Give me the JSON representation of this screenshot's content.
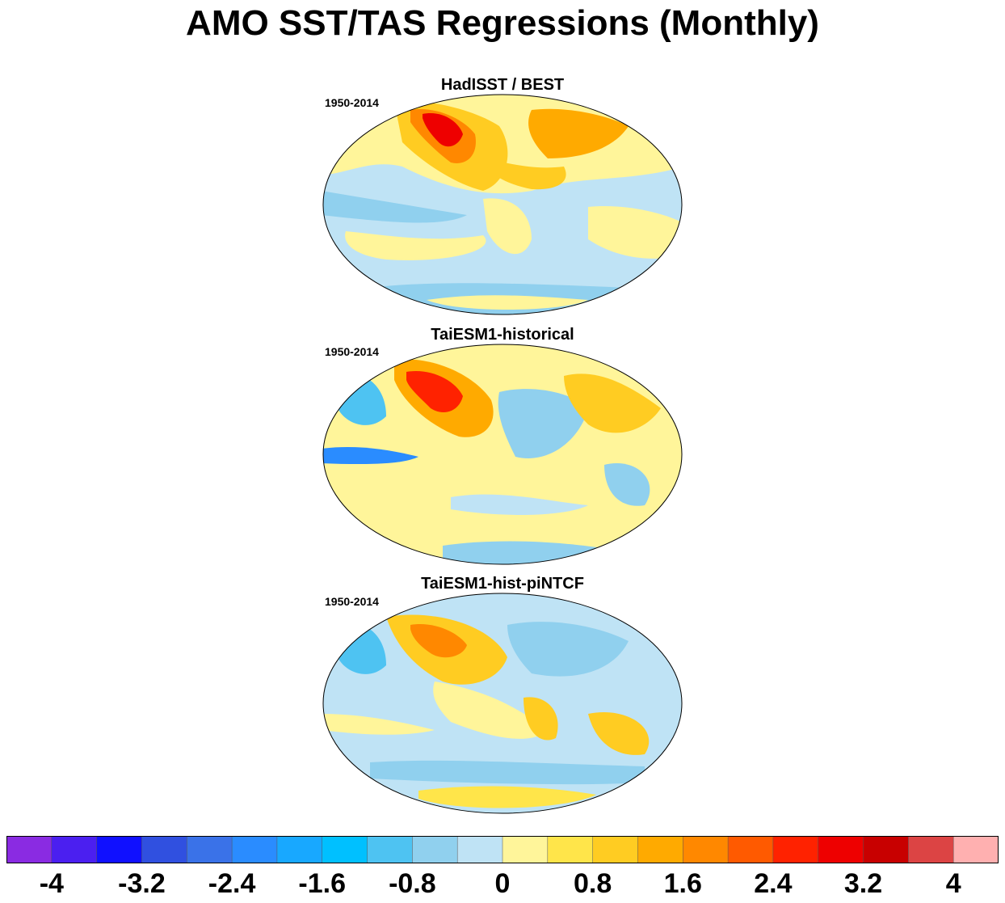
{
  "title": "AMO SST/TAS Regressions (Monthly)",
  "panels": [
    {
      "title": "HadISST / BEST",
      "period": "1950-2014"
    },
    {
      "title": "TaiESM1-historical",
      "period": "1950-2014"
    },
    {
      "title": "TaiESM1-hist-piNTCF",
      "period": "1950-2014"
    }
  ],
  "colorbar": {
    "colors": [
      "#8a2be2",
      "#4b1ff0",
      "#1010ff",
      "#3050e0",
      "#3a72e8",
      "#2a8cff",
      "#18a8ff",
      "#00c0ff",
      "#4ec3f2",
      "#90d0ee",
      "#bfe3f5",
      "#fff59a",
      "#ffe54a",
      "#ffcc22",
      "#ffaa00",
      "#ff8800",
      "#ff5a00",
      "#ff2200",
      "#ee0000",
      "#c80000",
      "#dc4444",
      "#ffb0b0"
    ],
    "labels": [
      "-4",
      "-3.2",
      "-2.4",
      "-1.6",
      "-0.8",
      "0",
      "0.8",
      "1.6",
      "2.4",
      "3.2",
      "4"
    ]
  }
}
